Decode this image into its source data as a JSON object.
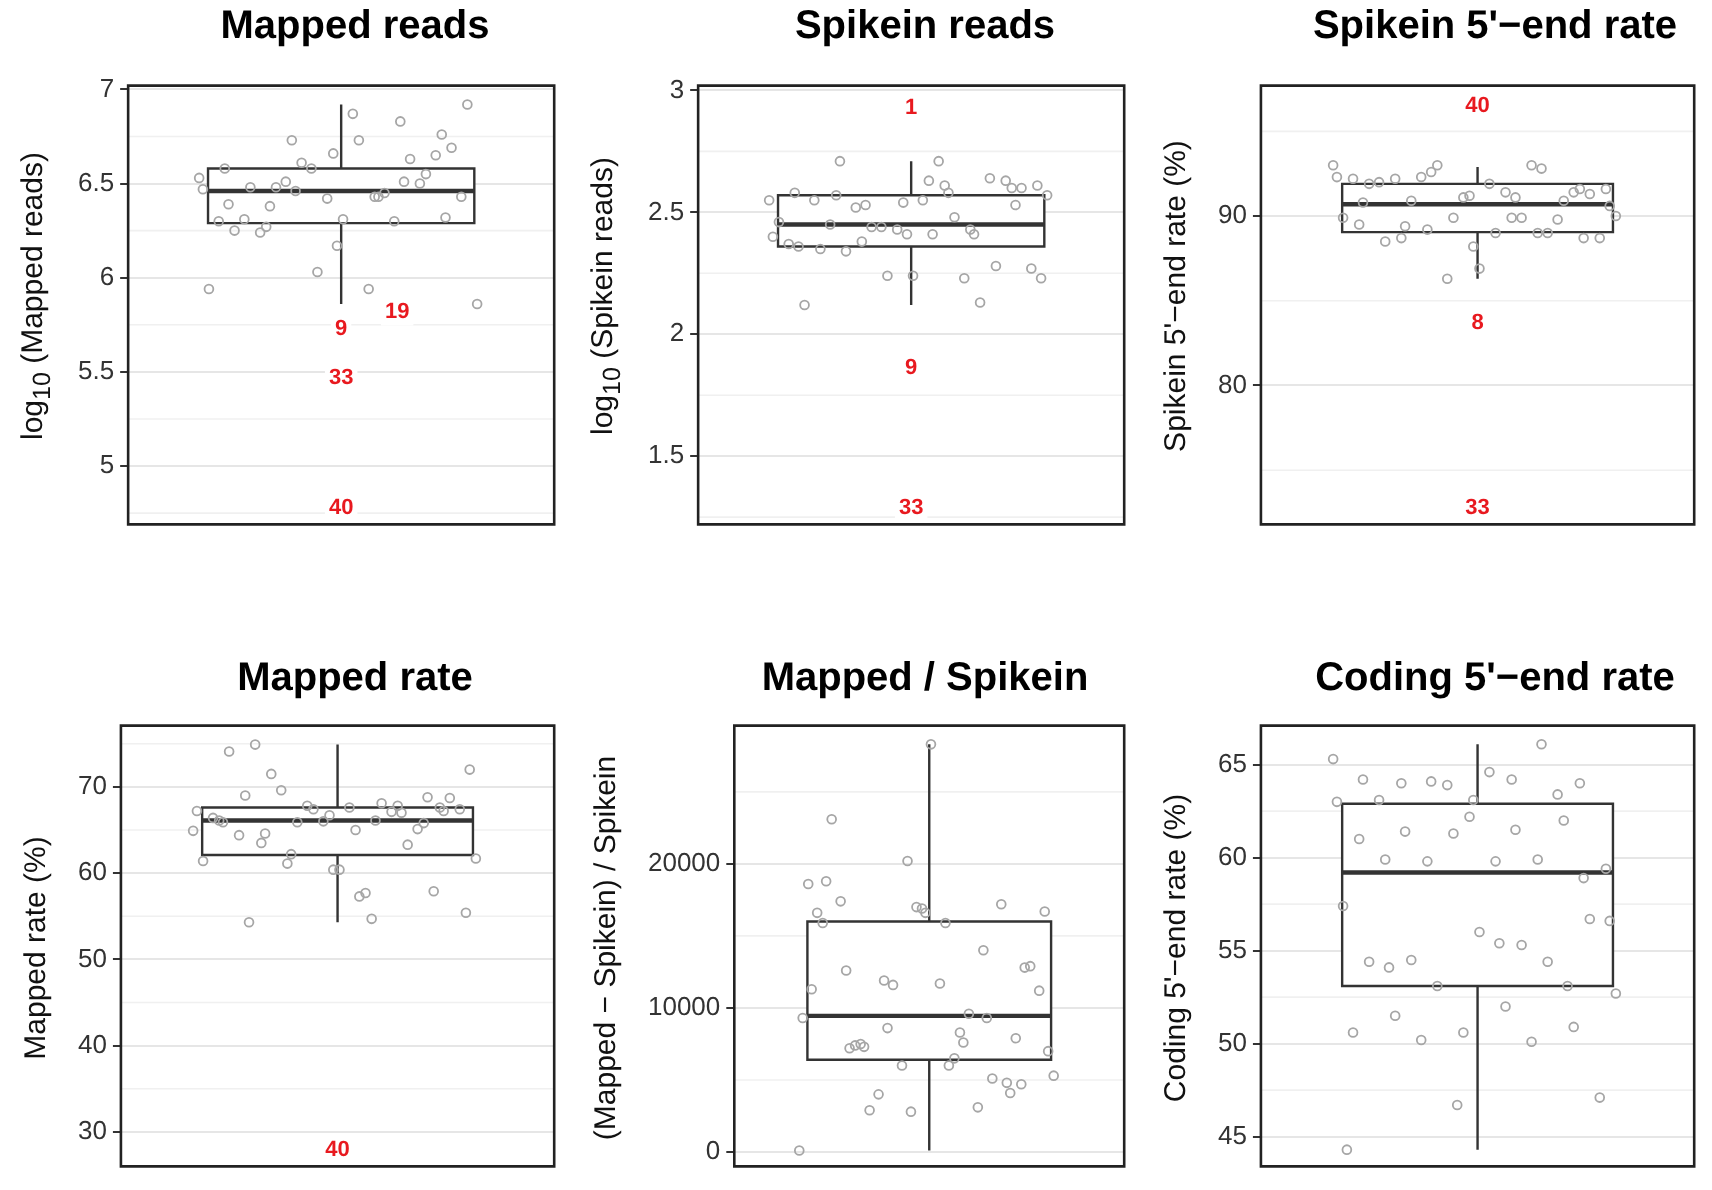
{
  "chart_data": [
    {
      "type": "box",
      "title": "Mapped reads",
      "ylabel": "log$_{10}$ (Mapped reads)",
      "categories": [
        null
      ],
      "tick_labels": "y",
      "grid": "y",
      "ylim": [
        4.69,
        7.02
      ],
      "yticks": [
        5.0,
        5.5,
        6.0,
        6.5,
        7.0
      ],
      "boxes": [
        {
          "low": 5.86,
          "q1": 6.29,
          "median": 6.46,
          "q3": 6.58,
          "high": 6.92
        }
      ],
      "annotations": [
        {
          "text": "9",
          "y": 5.73
        },
        {
          "text": "19",
          "y": 5.82
        },
        {
          "text": "33",
          "y": 5.47
        },
        "40"
      ],
      "series": [
        {
          "type": "scatter",
          "color": "#a6a6a6",
          "marker": "circle",
          "x": [
            null,
            null,
            null,
            null,
            null,
            null,
            null,
            null,
            null,
            null,
            null,
            null,
            null,
            null,
            null,
            null,
            null,
            null,
            null,
            null,
            null,
            null,
            null,
            null,
            null,
            null,
            null,
            null,
            null,
            null,
            null,
            null,
            null,
            null,
            null,
            null,
            null,
            null,
            null,
            null,
            null,
            null
          ],
          "values": [
            6.53,
            6.43,
            6.27,
            6.76,
            6.66,
            6.58,
            6.83,
            6.73,
            6.92,
            6.73,
            6.48,
            6.55,
            6.03,
            5.94,
            6.45,
            6.48,
            6.69,
            6.31,
            6.25,
            6.63,
            6.61,
            5.86,
            5.94,
            6.24,
            6.65,
            6.42,
            6.3,
            6.3,
            6.51,
            6.43,
            6.87,
            6.31,
            6.5,
            6.58,
            6.47,
            6.43,
            6.38,
            6.32,
            6.17,
            6.39,
            6.51,
            6.46
          ]
        }
      ]
    },
    {
      "type": "box",
      "title": "Spikein reads",
      "ylabel": "log$_{10}$ (Spikein reads)",
      "categories": [
        null
      ],
      "tick_labels": "y",
      "grid": "y",
      "ylim": [
        1.22,
        3.02
      ],
      "yticks": [
        1.5,
        2.0,
        2.5,
        3.0
      ],
      "boxes": [
        {
          "low": 2.12,
          "q1": 2.36,
          "median": 2.45,
          "q3": 2.57,
          "high": 2.71
        }
      ],
      "annotations": [
        {
          "text": "1",
          "y": 2.93
        },
        {
          "text": "9",
          "y": 1.86
        },
        "33"
      ],
      "series": [
        {
          "type": "scatter",
          "color": "#a6a6a6",
          "marker": "circle",
          "x": [
            null,
            null,
            null,
            null,
            null,
            null,
            null,
            null,
            null,
            null,
            null,
            null,
            null,
            null,
            null,
            null,
            null,
            null,
            null,
            null,
            null,
            null,
            null,
            null,
            null,
            null,
            null,
            null,
            null,
            null,
            null,
            null,
            null,
            null,
            null,
            null,
            null,
            null,
            null,
            null,
            null,
            null,
            null,
            null
          ],
          "values": [
            2.55,
            2.61,
            2.57,
            2.6,
            2.54,
            2.58,
            2.43,
            2.38,
            2.61,
            2.63,
            2.35,
            2.28,
            2.24,
            2.46,
            2.48,
            2.34,
            2.6,
            2.24,
            2.12,
            2.13,
            2.44,
            2.57,
            2.71,
            2.45,
            2.63,
            2.43,
            2.37,
            2.23,
            2.52,
            2.27,
            2.55,
            2.55,
            2.64,
            2.44,
            2.4,
            2.58,
            2.71,
            2.53,
            2.41,
            2.36,
            2.41,
            2.53,
            2.23,
            2.41
          ]
        }
      ]
    },
    {
      "type": "box",
      "title": "Spikein 5'−end rate",
      "ylabel": "Spikein 5'−end rate (%)",
      "categories": [
        null
      ],
      "tick_labels": "y",
      "grid": "y",
      "ylim": [
        71.8,
        97.7
      ],
      "yticks": [
        80,
        90
      ],
      "boxes": [
        {
          "low": 86.3,
          "q1": 89.05,
          "median": 90.7,
          "q3": 91.9,
          "high": 92.9
        }
      ],
      "annotations": [
        {
          "text": "40",
          "y": 96.5
        },
        {
          "text": "8",
          "y": 83.7
        },
        "33"
      ],
      "series": [
        {
          "type": "scatter",
          "color": "#a6a6a6",
          "marker": "circle",
          "x": [
            null,
            null,
            null,
            null,
            null,
            null,
            null,
            null,
            null,
            null,
            null,
            null,
            null,
            null,
            null,
            null,
            null,
            null,
            null,
            null,
            null,
            null,
            null,
            null,
            null,
            null,
            null,
            null,
            null,
            null,
            null,
            null,
            null,
            null,
            null,
            null,
            null,
            null,
            null,
            null,
            null,
            null,
            null
          ],
          "values": [
            93.0,
            89.9,
            88.7,
            91.6,
            91.2,
            89.5,
            89.0,
            89.2,
            91.6,
            89.0,
            88.5,
            90.9,
            89.9,
            89.9,
            89.9,
            90.9,
            91.3,
            86.9,
            91.9,
            89.0,
            93.0,
            90.0,
            91.4,
            92.2,
            91.4,
            91.1,
            92.2,
            93.0,
            92.3,
            88.7,
            91.9,
            92.0,
            89.8,
            86.3,
            92.3,
            91.1,
            89.4,
            88.7,
            88.2,
            90.8,
            92.8,
            92.6,
            90.6
          ]
        }
      ]
    },
    {
      "type": "box",
      "title": "Mapped rate",
      "ylabel": "Mapped rate (%)",
      "categories": [
        null
      ],
      "tick_labels": "y",
      "grid": "y",
      "ylim": [
        26.0,
        77.1
      ],
      "yticks": [
        30,
        40,
        50,
        60,
        70
      ],
      "boxes": [
        {
          "low": 54.3,
          "q1": 62.1,
          "median": 66.1,
          "q3": 67.6,
          "high": 74.9
        }
      ],
      "annotations": [
        {
          "text": "40",
          "y": 27.6
        }
      ],
      "series": [
        {
          "type": "scatter",
          "color": "#a6a6a6",
          "marker": "circle",
          "x": [
            null,
            null,
            null,
            null,
            null,
            null,
            null,
            null,
            null,
            null,
            null,
            null,
            null,
            null,
            null,
            null,
            null,
            null,
            null,
            null,
            null,
            null,
            null,
            null,
            null,
            null,
            null,
            null,
            null,
            null,
            null,
            null,
            null,
            null,
            null,
            null,
            null,
            null,
            null,
            null,
            null,
            null,
            null,
            null,
            null,
            null
          ],
          "values": [
            64.9,
            54.7,
            63.5,
            67.6,
            66.7,
            66.1,
            67.8,
            61.1,
            55.4,
            65.0,
            69.0,
            65.8,
            67.4,
            61.4,
            68.1,
            71.5,
            68.7,
            60.4,
            74.1,
            63.3,
            65.9,
            61.7,
            57.7,
            74.9,
            57.9,
            66.0,
            66.4,
            67.1,
            69.6,
            67.4,
            67.6,
            64.4,
            65.1,
            67.8,
            67.2,
            66.1,
            64.6,
            67.2,
            60.4,
            65.9,
            67.0,
            62.2,
            72.0,
            57.3,
            54.3,
            68.8
          ]
        }
      ]
    },
    {
      "type": "box",
      "title": "Mapped / Spikein",
      "ylabel": "(Mapped − Spikein) / Spikein",
      "categories": [
        null
      ],
      "tick_labels": "y",
      "grid": "y",
      "ylim": [
        -1000,
        29600
      ],
      "yticks": [
        0,
        10000,
        20000
      ],
      "boxes": [
        {
          "low": 100,
          "q1": 6400,
          "median": 9450,
          "q3": 16000,
          "high": 28300
        }
      ],
      "series": [
        {
          "type": "scatter",
          "color": "#a6a6a6",
          "marker": "circle",
          "x": [
            null,
            null,
            null,
            null,
            null,
            null,
            null,
            null,
            null,
            null,
            null,
            null,
            null,
            null,
            null,
            null,
            null,
            null,
            null,
            null,
            null,
            null,
            null,
            null,
            null,
            null,
            null,
            null,
            null,
            null,
            null,
            null,
            null,
            null,
            null,
            null,
            null,
            null,
            null,
            null,
            null,
            null,
            null,
            null,
            null,
            null,
            null,
            null
          ],
          "values": [
            100,
            8300,
            7500,
            4700,
            16900,
            15900,
            14000,
            11900,
            16700,
            15900,
            12600,
            4800,
            20200,
            18600,
            9600,
            2900,
            12900,
            28300,
            23100,
            5100,
            11600,
            5300,
            6500,
            7400,
            7900,
            17000,
            16600,
            3100,
            4000,
            11200,
            11700,
            17400,
            17200,
            6000,
            9300,
            7600,
            7300,
            12800,
            16600,
            18800,
            9300,
            8600,
            7000,
            6000,
            7200,
            4100,
            2800,
            11300
          ]
        }
      ]
    },
    {
      "type": "box",
      "title": "Coding 5'−end rate",
      "ylabel": "Coding 5'−end rate (%)",
      "categories": [
        null
      ],
      "tick_labels": "y",
      "grid": "y",
      "ylim": [
        43.4,
        67.1
      ],
      "yticks": [
        45,
        50,
        55,
        60,
        65
      ],
      "boxes": [
        {
          "low": 44.3,
          "q1": 53.1,
          "median": 59.2,
          "q3": 62.9,
          "high": 66.1
        }
      ],
      "series": [
        {
          "type": "scatter",
          "color": "#a6a6a6",
          "marker": "circle",
          "x": [
            null,
            null,
            null,
            null,
            null,
            null,
            null,
            null,
            null,
            null,
            null,
            null,
            null,
            null,
            null,
            null,
            null,
            null,
            null,
            null,
            null,
            null,
            null,
            null,
            null,
            null,
            null,
            null,
            null,
            null,
            null,
            null,
            null,
            null,
            null,
            null,
            null,
            null,
            null,
            null,
            null,
            null,
            null,
            null,
            null,
            null,
            null,
            null
          ],
          "values": [
            65.3,
            64.2,
            64.0,
            64.0,
            62.2,
            61.0,
            59.9,
            59.8,
            59.4,
            59.8,
            59.9,
            62.0,
            61.3,
            57.4,
            55.3,
            54.5,
            56.7,
            56.0,
            54.4,
            54.4,
            53.1,
            52.7,
            52.0,
            51.5,
            50.9,
            50.6,
            50.6,
            50.1,
            50.2,
            47.1,
            64.6,
            63.1,
            63.4,
            63.9,
            63.0,
            61.5,
            61.4,
            58.9,
            63.1,
            64.2,
            66.1,
            64.1,
            56.6,
            55.4,
            54.1,
            53.1,
            46.7,
            44.3
          ]
        }
      ]
    }
  ]
}
